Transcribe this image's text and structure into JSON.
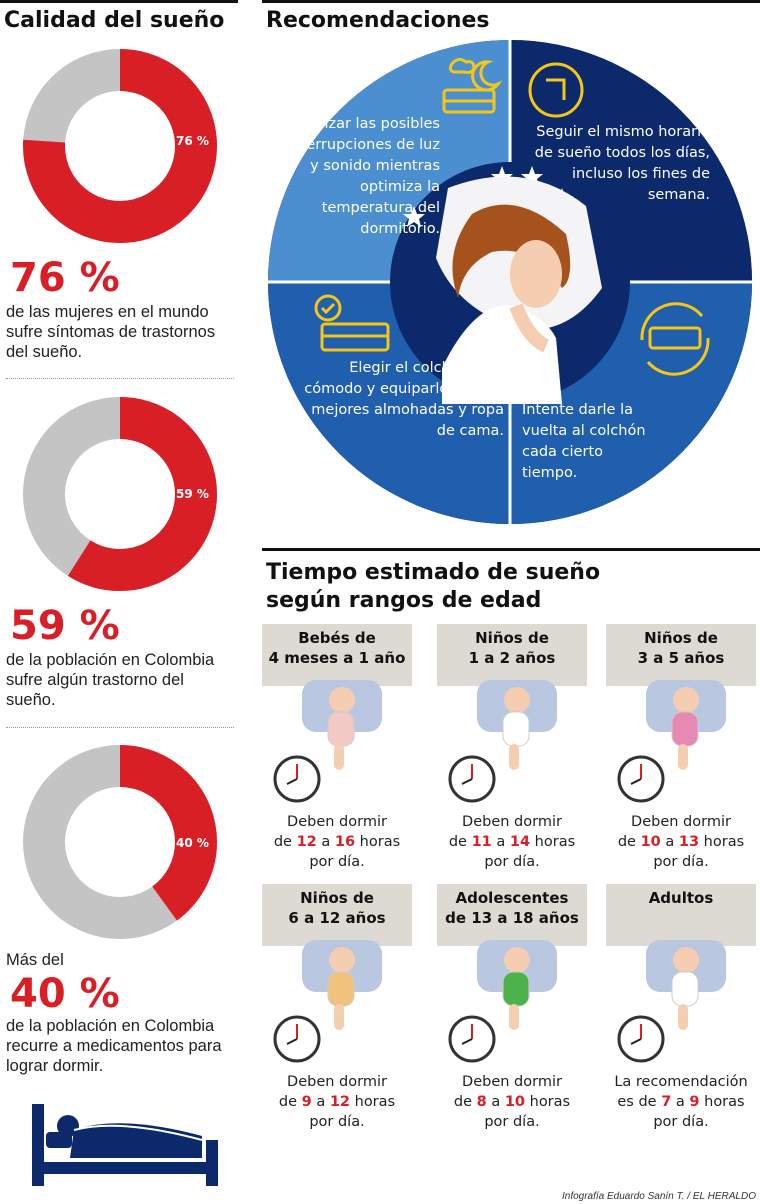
{
  "left": {
    "title": "Calidad del sueño",
    "stats": [
      {
        "value": 76,
        "label": "76 %",
        "big": "76 %",
        "prefix": "",
        "desc": "de las mujeres en el mundo sufre síntomas de trastornos del sueño."
      },
      {
        "value": 59,
        "label": "59 %",
        "big": "59 %",
        "prefix": "",
        "desc": "de la población en Colombia sufre algún trastorno del sueño."
      },
      {
        "value": 40,
        "label": "40 %",
        "big": "40 %",
        "prefix": "Más del",
        "desc": "de la población en Colombia recurre a medicamentos para lograr dormir."
      }
    ]
  },
  "recommendations": {
    "title": "Recomendaciones",
    "items": [
      "Minimizar las posibles interrupciones de luz y sonido mientras optimiza la temperatura del dormitorio.",
      "Seguir el mismo horario de sueño todos los días, incluso los fines de semana.",
      "Elegir el colchón más cómodo y equiparlo con las mejores almohadas y ropa de cama.",
      "Intente darle la vuelta al colchón cada cierto tiempo."
    ]
  },
  "ages": {
    "title_line1": "Tiempo estimado de sueño",
    "title_line2": "según rangos de edad",
    "groups": [
      {
        "label1": "Bebés de",
        "label2": "4 meses a 1 año",
        "pre": "Deben dormir",
        "de": "de",
        "min": "12",
        "a": "a",
        "max": "16",
        "unit": "horas",
        "post": "por día."
      },
      {
        "label1": "Niños de",
        "label2": "1 a 2 años",
        "pre": "Deben dormir",
        "de": "de",
        "min": "11",
        "a": "a",
        "max": "14",
        "unit": "horas",
        "post": "por día."
      },
      {
        "label1": "Niños de",
        "label2": "3 a 5 años",
        "pre": "Deben dormir",
        "de": "de",
        "min": "10",
        "a": "a",
        "max": "13",
        "unit": "horas",
        "post": "por día."
      },
      {
        "label1": "Niños de",
        "label2": "6 a 12 años",
        "pre": "Deben dormir",
        "de": "de",
        "min": "9",
        "a": "a",
        "max": "12",
        "unit": "horas",
        "post": "por día."
      },
      {
        "label1": "Adolescentes",
        "label2": "de 13 a 18 años",
        "pre": "Deben dormir",
        "de": "de",
        "min": "8",
        "a": "a",
        "max": "10",
        "unit": "horas",
        "post": "por día."
      },
      {
        "label1": "Adultos",
        "label2": "",
        "pre": "La recomendación",
        "de": "es de",
        "min": "7",
        "a": "a",
        "max": "9",
        "unit": "horas",
        "post": "por día."
      }
    ]
  },
  "credit": "Infografía Eduardo Sanín T. / EL HERALDO",
  "colors": {
    "red": "#d81f26",
    "gray": "#c4c4c4",
    "navy": "#0c2a6b",
    "blue": "#1f5fae",
    "light_blue": "#4b8fd0",
    "box": "#dcdad2"
  }
}
